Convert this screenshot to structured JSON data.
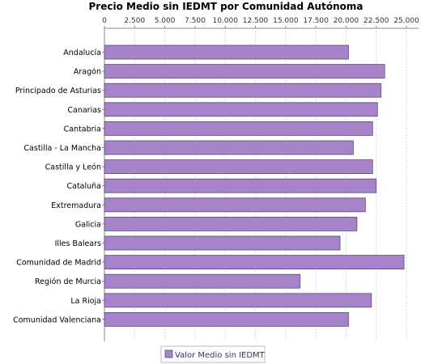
{
  "chart_data": {
    "type": "bar",
    "orientation": "horizontal",
    "title": "Precio Medio sin IEDMT por Comunidad Autónoma",
    "xlabel": "",
    "ylabel": "",
    "xlim": [
      0,
      26000
    ],
    "x_ticks": [
      "0",
      "2.500",
      "5.000",
      "7.500",
      "10.000",
      "12.500",
      "15.000",
      "17.500",
      "20.000",
      "22.500",
      "25.000"
    ],
    "x_tick_values": [
      0,
      2500,
      5000,
      7500,
      10000,
      12500,
      15000,
      17500,
      20000,
      22500,
      25000
    ],
    "axis_position": "top",
    "grid": true,
    "legend_position": "bottom",
    "categories": [
      "Andalucía",
      "Aragón",
      "Principado de Asturias",
      "Canarias",
      "Cantabria",
      "Castilla - La Mancha",
      "Castilla y León",
      "Cataluña",
      "Extremadura",
      "Galicia",
      "Illes Balears",
      "Comunidad de Madrid",
      "Región de Murcia",
      "La Rioja",
      "Comunidad Valenciana"
    ],
    "series": [
      {
        "name": "Valor Medio sin IEDMT",
        "color": "#a784c9",
        "values": [
          20200,
          23200,
          22900,
          22600,
          22200,
          20600,
          22200,
          22500,
          21600,
          20900,
          19500,
          24800,
          16200,
          22100,
          20200
        ]
      }
    ]
  }
}
